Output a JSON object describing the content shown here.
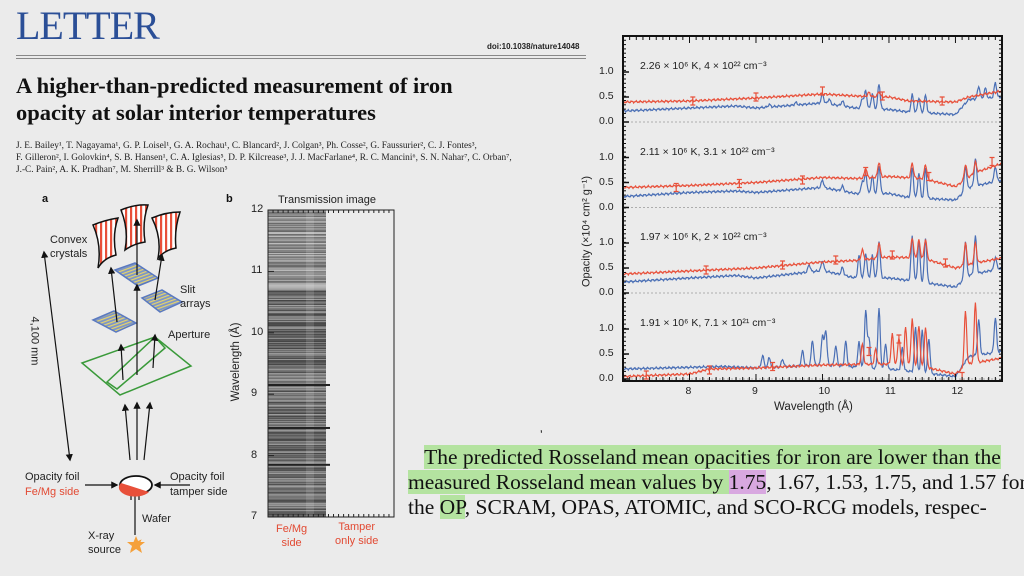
{
  "header": {
    "section": "LETTER",
    "doi": "doi:10.1038/nature14048",
    "title_line1": "A higher-than-predicted measurement of iron",
    "title_line2": "opacity at solar interior temperatures",
    "authors": [
      "J. E. Bailey¹, T. Nagayama¹, G. P. Loisel¹, G. A. Rochau¹, C. Blancard², J. Colgan³, Ph. Cosse², G. Faussurier², C. J. Fontes³,",
      "F. Gilleron², I. Golovkin⁴, S. B. Hansen¹, C. A. Iglesias⁵, D. P. Kilcrease³, J. J. MacFarlane⁴, R. C. Mancini⁶, S. N. Nahar⁷, C. Orban⁷,",
      "J.-C. Pain², A. K. Pradhan⁷, M. Sherrill³ & B. G. Wilson⁵"
    ]
  },
  "figure_a": {
    "panel": "a",
    "convex_1": "Convex",
    "convex_2": "crystals",
    "slit_1": "Slit",
    "slit_2": "arrays",
    "aperture": "Aperture",
    "distance": "4,100 mm",
    "foil_left_1": "Opacity foil",
    "foil_left_2": "Fe/Mg side",
    "foil_right_1": "Opacity foil",
    "foil_right_2": "tamper side",
    "wafer": "Wafer",
    "source_1": "X-ray",
    "source_2": "source"
  },
  "figure_b": {
    "panel": "b",
    "title": "Transmission image",
    "ylabel": "Wavelength (Å)",
    "yticks": [
      "12",
      "11",
      "10",
      "9",
      "8",
      "7"
    ],
    "left_label_1": "Fe/Mg",
    "left_label_2": "side",
    "right_label_1": "Tamper",
    "right_label_2": "only side"
  },
  "chart_data": {
    "type": "line",
    "xlabel": "Wavelength (Å)",
    "ylabel": "Opacity (×10⁴ cm² g⁻¹)",
    "xlim": [
      7.0,
      12.7
    ],
    "ylim": [
      0,
      1.2
    ],
    "xticks": [
      "8",
      "9",
      "10",
      "11",
      "12"
    ],
    "yticks": [
      "1.0",
      "0.5",
      "0.0"
    ],
    "colors": {
      "measured": "#e8503a",
      "model": "#4a6fb5"
    },
    "panels": [
      {
        "label": "2.26 × 10⁶ K, 4 × 10²² cm⁻³",
        "measured": {
          "base": [
            [
              7,
              0.4
            ],
            [
              8,
              0.42
            ],
            [
              9,
              0.48
            ],
            [
              10,
              0.56
            ],
            [
              10.5,
              0.52
            ],
            [
              11,
              0.5
            ],
            [
              11.3,
              0.42
            ],
            [
              12,
              0.4
            ],
            [
              12.2,
              0.5
            ],
            [
              12.7,
              0.62
            ]
          ],
          "peaks": [
            [
              10.7,
              0.08
            ],
            [
              10.85,
              0.1
            ]
          ],
          "errors": [
            [
              8.05,
              0.42
            ],
            [
              9,
              0.5
            ],
            [
              10,
              0.62
            ],
            [
              10.9,
              0.52
            ],
            [
              11.8,
              0.42
            ]
          ]
        },
        "model": {
          "base": [
            [
              7,
              0.22
            ],
            [
              8,
              0.28
            ],
            [
              8.7,
              0.32
            ],
            [
              9,
              0.28
            ],
            [
              10,
              0.38
            ],
            [
              10.5,
              0.28
            ],
            [
              11,
              0.25
            ],
            [
              11.3,
              0.2
            ],
            [
              12,
              0.15
            ],
            [
              12.2,
              0.45
            ],
            [
              12.7,
              0.5
            ]
          ],
          "peaks": [
            [
              9.2,
              0.05
            ],
            [
              9.6,
              0.05
            ],
            [
              10,
              0.18
            ],
            [
              10.1,
              0.1
            ],
            [
              10.3,
              0.1
            ],
            [
              10.6,
              0.2
            ],
            [
              10.65,
              0.35
            ],
            [
              10.75,
              0.3
            ],
            [
              10.85,
              0.5
            ],
            [
              11.35,
              0.35
            ],
            [
              11.45,
              0.3
            ],
            [
              11.55,
              0.35
            ],
            [
              12.35,
              0.25
            ],
            [
              12.45,
              0.2
            ],
            [
              12.6,
              0.3
            ]
          ]
        }
      },
      {
        "label": "2.11 × 10⁶ K, 3.1 × 10²² cm⁻³",
        "measured": {
          "base": [
            [
              7,
              0.4
            ],
            [
              8,
              0.44
            ],
            [
              9,
              0.5
            ],
            [
              10,
              0.6
            ],
            [
              10.5,
              0.58
            ],
            [
              11,
              0.62
            ],
            [
              11.5,
              0.58
            ],
            [
              12,
              0.42
            ],
            [
              12.3,
              0.7
            ],
            [
              12.7,
              0.88
            ]
          ],
          "peaks": [
            [
              10.65,
              0.2
            ],
            [
              10.85,
              0.3
            ],
            [
              11.35,
              0.3
            ],
            [
              11.55,
              0.3
            ],
            [
              12.15,
              0.3
            ],
            [
              12.3,
              0.2
            ]
          ],
          "errors": [
            [
              7.8,
              0.4
            ],
            [
              8.75,
              0.48
            ],
            [
              9.7,
              0.55
            ],
            [
              10.65,
              0.72
            ],
            [
              11.6,
              0.62
            ],
            [
              12.55,
              0.92
            ]
          ]
        },
        "model": {
          "base": [
            [
              7,
              0.22
            ],
            [
              8,
              0.3
            ],
            [
              8.7,
              0.33
            ],
            [
              9,
              0.3
            ],
            [
              10,
              0.4
            ],
            [
              10.5,
              0.28
            ],
            [
              11,
              0.28
            ],
            [
              11.3,
              0.2
            ],
            [
              12,
              0.15
            ],
            [
              12.2,
              0.4
            ],
            [
              12.7,
              0.55
            ]
          ],
          "peaks": [
            [
              10,
              0.15
            ],
            [
              10.3,
              0.1
            ],
            [
              10.6,
              0.25
            ],
            [
              10.65,
              0.4
            ],
            [
              10.75,
              0.35
            ],
            [
              10.85,
              0.55
            ],
            [
              11.35,
              0.6
            ],
            [
              11.45,
              0.5
            ],
            [
              11.55,
              0.6
            ],
            [
              12.15,
              0.5
            ],
            [
              12.3,
              0.55
            ],
            [
              12.6,
              0.3
            ]
          ]
        }
      },
      {
        "label": "1.97 × 10⁶ K, 2 × 10²² cm⁻³",
        "measured": {
          "base": [
            [
              7,
              0.38
            ],
            [
              8,
              0.44
            ],
            [
              9,
              0.5
            ],
            [
              10,
              0.62
            ],
            [
              10.5,
              0.65
            ],
            [
              11,
              0.72
            ],
            [
              11.5,
              0.7
            ],
            [
              12,
              0.5
            ],
            [
              12.3,
              0.6
            ],
            [
              12.7,
              0.7
            ]
          ],
          "peaks": [
            [
              10.6,
              0.2
            ],
            [
              10.85,
              0.3
            ],
            [
              11.35,
              0.4
            ],
            [
              11.45,
              0.35
            ],
            [
              11.55,
              0.4
            ],
            [
              12.15,
              0.45
            ],
            [
              12.3,
              0.4
            ]
          ],
          "errors": [
            [
              8.25,
              0.46
            ],
            [
              9.4,
              0.56
            ],
            [
              10.2,
              0.66
            ],
            [
              11.05,
              0.76
            ],
            [
              11.85,
              0.6
            ]
          ]
        },
        "model": {
          "base": [
            [
              7,
              0.22
            ],
            [
              8,
              0.3
            ],
            [
              8.7,
              0.35
            ],
            [
              9,
              0.3
            ],
            [
              10,
              0.45
            ],
            [
              10.5,
              0.3
            ],
            [
              11,
              0.3
            ],
            [
              11.3,
              0.25
            ],
            [
              12,
              0.12
            ],
            [
              12.2,
              0.35
            ],
            [
              12.7,
              0.5
            ]
          ],
          "peaks": [
            [
              9.8,
              0.15
            ],
            [
              10,
              0.2
            ],
            [
              10.3,
              0.15
            ],
            [
              10.55,
              0.45
            ],
            [
              10.65,
              0.5
            ],
            [
              10.75,
              0.45
            ],
            [
              10.85,
              0.75
            ],
            [
              11.35,
              0.9
            ],
            [
              11.45,
              0.8
            ],
            [
              11.55,
              0.9
            ],
            [
              12.15,
              0.75
            ],
            [
              12.3,
              0.75
            ],
            [
              12.6,
              0.25
            ]
          ]
        }
      },
      {
        "label": "1.91 × 10⁶ K, 7.1 × 10²¹ cm⁻³",
        "measured": {
          "base": [
            [
              7,
              0.05
            ],
            [
              8,
              0.1
            ],
            [
              8.3,
              0.2
            ],
            [
              9,
              0.22
            ],
            [
              10,
              0.28
            ],
            [
              11,
              0.3
            ],
            [
              11.5,
              0.25
            ],
            [
              12,
              0.1
            ],
            [
              12.2,
              0.3
            ],
            [
              12.7,
              0.42
            ]
          ],
          "peaks": [
            [
              10.6,
              0.4
            ],
            [
              10.8,
              0.3
            ],
            [
              11.05,
              0.6
            ],
            [
              11.15,
              0.55
            ],
            [
              11.25,
              0.75
            ],
            [
              11.35,
              0.95
            ],
            [
              11.45,
              0.8
            ],
            [
              11.55,
              0.8
            ],
            [
              12.15,
              1.1
            ],
            [
              12.3,
              1.2
            ]
          ],
          "errors": [
            [
              7.35,
              0.08
            ],
            [
              8.3,
              0.18
            ],
            [
              9.25,
              0.25
            ],
            [
              10.7,
              0.55
            ],
            [
              11.15,
              0.8
            ],
            [
              12.1,
              0.05
            ]
          ]
        },
        "model": {
          "base": [
            [
              7,
              0.2
            ],
            [
              8.5,
              0.25
            ],
            [
              9,
              0.22
            ],
            [
              10,
              0.28
            ],
            [
              11,
              0.2
            ],
            [
              12,
              0.05
            ],
            [
              12.2,
              0.45
            ],
            [
              12.7,
              0.55
            ]
          ],
          "peaks": [
            [
              9.1,
              0.25
            ],
            [
              9.2,
              0.2
            ],
            [
              9.4,
              0.15
            ],
            [
              9.7,
              0.3
            ],
            [
              9.85,
              0.5
            ],
            [
              10,
              0.6
            ],
            [
              10.05,
              0.7
            ],
            [
              10.2,
              0.4
            ],
            [
              10.35,
              0.5
            ],
            [
              10.55,
              0.5
            ],
            [
              10.65,
              1.15
            ],
            [
              10.7,
              0.6
            ],
            [
              10.85,
              1.2
            ],
            [
              10.95,
              0.5
            ],
            [
              11.2,
              0.45
            ],
            [
              11.4,
              0.9
            ],
            [
              11.5,
              0.85
            ],
            [
              11.6,
              0.7
            ],
            [
              12.35,
              0.7
            ],
            [
              12.6,
              0.7
            ]
          ]
        }
      }
    ]
  },
  "body_text": {
    "line1": "The predicted Rosseland mean opacities for iron are lower than the",
    "line2a": "measured Rosseland mean values by ",
    "line2b": "1.75",
    "line2c": ", 1.67, 1.53, 1.75, and 1.57 for",
    "line3a": "the ",
    "line3b": "OP",
    "line3c": ", SCRAM, OPAS, ATOMIC, and SCO-RCG models, respec-"
  }
}
